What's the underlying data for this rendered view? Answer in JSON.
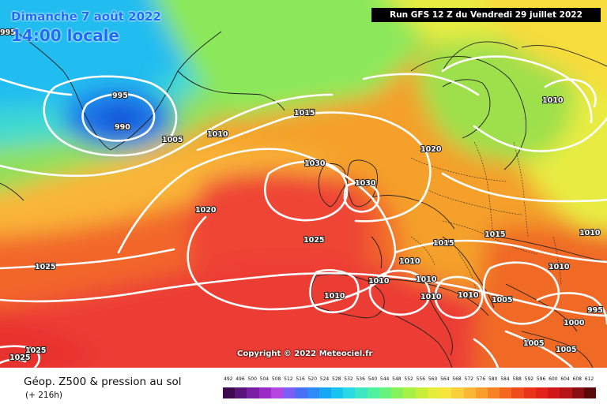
{
  "map": {
    "date_title": "Dimanche 7 août 2022",
    "time_title": "14:00 locale",
    "run_info": "Run GFS 12 Z du Vendredi 29 juillet 2022",
    "copyright": "Copyright © 2022 Meteociel.fr",
    "isobar_labels": [
      "995",
      "995",
      "990",
      "1005",
      "1010",
      "1015",
      "1020",
      "1010",
      "1030",
      "1030",
      "1020",
      "1025",
      "1025",
      "1025",
      "1015",
      "1015",
      "1010",
      "1010",
      "1010",
      "1010",
      "1010",
      "1010",
      "1010",
      "1010",
      "1005",
      "1000",
      "1005",
      "1005",
      "995",
      "1025"
    ]
  },
  "legend": {
    "title": "Géop. Z500 & pression au sol",
    "subtitle": "(+ 216h)",
    "scale_values": [
      "492",
      "496",
      "500",
      "504",
      "508",
      "512",
      "516",
      "520",
      "524",
      "528",
      "532",
      "536",
      "540",
      "544",
      "548",
      "552",
      "556",
      "560",
      "564",
      "568",
      "572",
      "576",
      "580",
      "584",
      "588",
      "592",
      "596",
      "600",
      "604",
      "608",
      "612"
    ],
    "scale_colors": [
      "#3c0a4e",
      "#5b157a",
      "#7a1fa3",
      "#9a2bc7",
      "#b545e0",
      "#7c5df5",
      "#4b6ef7",
      "#2d8bf7",
      "#18a7f5",
      "#17c4f0",
      "#28d9e3",
      "#3ee6c4",
      "#4ff0a0",
      "#66f27c",
      "#86f25b",
      "#a7f046",
      "#c8ee3b",
      "#e6ec3a",
      "#f7e43d",
      "#fbcf3a",
      "#fbb734",
      "#f99d2d",
      "#f68225",
      "#f3671f",
      "#ef4c1c",
      "#ea341a",
      "#e22219",
      "#d11818",
      "#b71417",
      "#8a0f12",
      "#5a080a"
    ]
  }
}
